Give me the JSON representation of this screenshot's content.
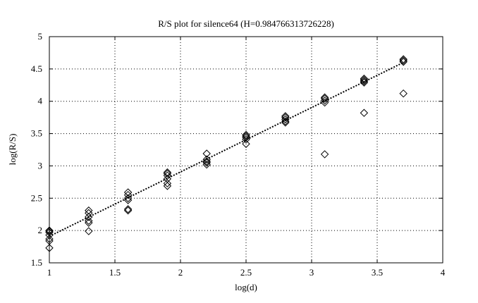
{
  "chart_data": {
    "type": "scatter",
    "title": "R/S plot for silence64 (H=0.984766313726228)",
    "xlabel": "log(d)",
    "ylabel": "log(R/S)",
    "xlim": [
      1,
      4
    ],
    "ylim": [
      1.5,
      5
    ],
    "xticks": [
      1,
      1.5,
      2,
      2.5,
      3,
      3.5,
      4
    ],
    "xtick_labels": [
      "1",
      "1.5",
      "2",
      "2.5",
      "3",
      "3.5",
      "4"
    ],
    "yticks": [
      1.5,
      2,
      2.5,
      3,
      3.5,
      4,
      4.5,
      5
    ],
    "ytick_labels": [
      "1.5",
      "2",
      "2.5",
      "3",
      "3.5",
      "4",
      "4.5",
      "5"
    ],
    "grid": true,
    "marker": "diamond",
    "points": [
      [
        1.0,
        2.0
      ],
      [
        1.0,
        1.99
      ],
      [
        1.0,
        1.97
      ],
      [
        1.0,
        1.93
      ],
      [
        1.0,
        1.87
      ],
      [
        1.0,
        1.84
      ],
      [
        1.0,
        1.73
      ],
      [
        1.3,
        2.31
      ],
      [
        1.3,
        2.27
      ],
      [
        1.3,
        2.21
      ],
      [
        1.3,
        2.15
      ],
      [
        1.3,
        2.12
      ],
      [
        1.3,
        1.99
      ],
      [
        1.6,
        2.59
      ],
      [
        1.6,
        2.55
      ],
      [
        1.6,
        2.5
      ],
      [
        1.6,
        2.47
      ],
      [
        1.6,
        2.33
      ],
      [
        1.6,
        2.31
      ],
      [
        1.9,
        2.9
      ],
      [
        1.9,
        2.88
      ],
      [
        1.9,
        2.85
      ],
      [
        1.9,
        2.8
      ],
      [
        1.9,
        2.73
      ],
      [
        1.9,
        2.69
      ],
      [
        2.2,
        3.19
      ],
      [
        2.2,
        3.1
      ],
      [
        2.2,
        3.07
      ],
      [
        2.2,
        3.05
      ],
      [
        2.2,
        3.02
      ],
      [
        2.5,
        3.48
      ],
      [
        2.5,
        3.46
      ],
      [
        2.5,
        3.44
      ],
      [
        2.5,
        3.41
      ],
      [
        2.5,
        3.34
      ],
      [
        2.8,
        3.77
      ],
      [
        2.8,
        3.75
      ],
      [
        2.8,
        3.72
      ],
      [
        2.8,
        3.69
      ],
      [
        2.8,
        3.67
      ],
      [
        3.1,
        4.06
      ],
      [
        3.1,
        4.04
      ],
      [
        3.1,
        4.01
      ],
      [
        3.1,
        3.98
      ],
      [
        3.1,
        3.18
      ],
      [
        3.4,
        4.35
      ],
      [
        3.4,
        4.33
      ],
      [
        3.4,
        4.31
      ],
      [
        3.4,
        4.29
      ],
      [
        3.4,
        3.82
      ],
      [
        3.7,
        4.65
      ],
      [
        3.7,
        4.63
      ],
      [
        3.7,
        4.61
      ],
      [
        3.7,
        4.12
      ]
    ],
    "fit_line": {
      "slope": 0.984766313726228,
      "x": [
        1.0,
        3.7
      ],
      "y": [
        1.91,
        4.6
      ]
    }
  }
}
